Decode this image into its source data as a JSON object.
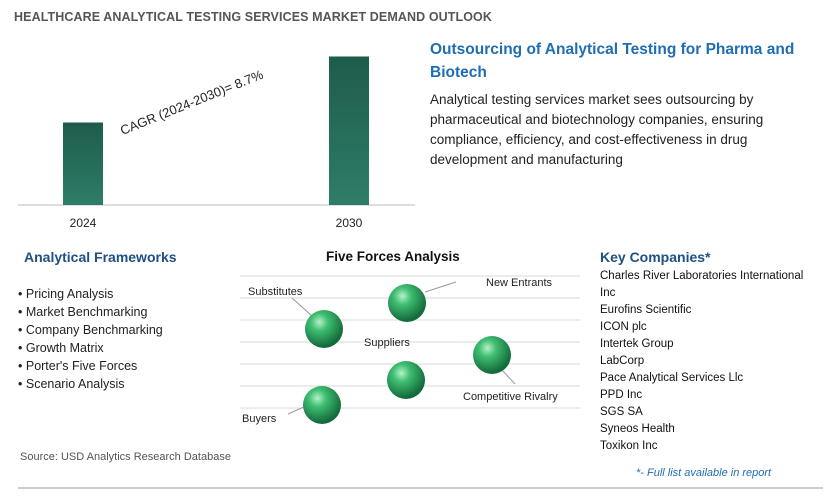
{
  "header": {
    "title": "HEALTHCARE ANALYTICAL TESTING SERVICES MARKET DEMAND OUTLOOK"
  },
  "chart_data": {
    "type": "bar",
    "categories": [
      "2024",
      "2030"
    ],
    "values": [
      0.5,
      0.9
    ],
    "annotation": "CAGR (2024-2030)=   8.7%",
    "ylim": [
      0,
      1
    ],
    "grid": false,
    "bar_color_top": "#1e5c4a",
    "bar_color_bottom": "#2e7d6a"
  },
  "highlight": {
    "heading": "Outsourcing of Analytical Testing for Pharma and Biotech",
    "text": "Analytical testing services market sees outsourcing by pharmaceutical and biotechnology companies, ensuring compliance, efficiency, and cost-effectiveness in drug development and manufacturing"
  },
  "frameworks": {
    "title": "Analytical Frameworks",
    "items": [
      "Pricing Analysis",
      "Market Benchmarking",
      "Company Benchmarking",
      "Growth Matrix",
      "Porter's Five Forces",
      "Scenario Analysis"
    ]
  },
  "five_forces": {
    "title": "Five Forces Analysis",
    "labels": {
      "substitutes": "Substitutes",
      "new_entrants": "New Entrants",
      "suppliers": "Suppliers",
      "competitive_rivalry": "Competitive Rivalry",
      "buyers": "Buyers"
    },
    "sphere_color": "#2e9e5e"
  },
  "companies": {
    "title": "Key Companies*",
    "items": [
      "Charles River Laboratories International",
      "Inc",
      "Eurofins Scientific",
      "ICON plc",
      "Intertek Group",
      "LabCorp",
      "Pace Analytical Services Llc",
      "PPD Inc",
      "SGS SA",
      "Syneos Health",
      "Toxikon Inc"
    ],
    "note": "*- Full list available in report"
  },
  "footer": {
    "source": "Source: USD Analytics Research Database"
  }
}
